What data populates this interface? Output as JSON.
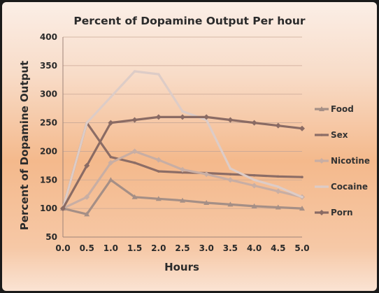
{
  "chart_data": {
    "type": "line",
    "title": "Percent of Dopamine Output Per hour",
    "xlabel": "Hours",
    "ylabel": "Percent of Dopamine Output",
    "x": [
      0.0,
      0.5,
      1.0,
      1.5,
      2.0,
      2.5,
      3.0,
      3.5,
      4.0,
      4.5,
      5.0
    ],
    "x_tick_labels": [
      "0.0",
      "0.5",
      "1.0",
      "1.5",
      "2.0",
      "2.5",
      "3.0",
      "3.5",
      "4.0",
      "4.5",
      "5.0"
    ],
    "ylim": [
      50,
      400
    ],
    "y_ticks": [
      50,
      100,
      150,
      200,
      250,
      300,
      350,
      400
    ],
    "grid": true,
    "legend_position": "right",
    "series": [
      {
        "name": "Food",
        "color": "#a58f86",
        "marker": "triangle",
        "values": [
          100,
          90,
          150,
          120,
          117,
          114,
          110,
          107,
          104,
          102,
          100
        ]
      },
      {
        "name": "Sex",
        "color": "#8c6d66",
        "marker": "none",
        "values": [
          100,
          250,
          190,
          180,
          165,
          163,
          162,
          160,
          158,
          156,
          155
        ]
      },
      {
        "name": "Nicotine",
        "color": "#c8aea4",
        "marker": "diamond",
        "values": [
          100,
          120,
          180,
          200,
          185,
          168,
          160,
          150,
          140,
          130,
          120
        ]
      },
      {
        "name": "Cocaine",
        "color": "#ddccc7",
        "marker": "none",
        "values": [
          100,
          250,
          295,
          340,
          335,
          270,
          255,
          170,
          150,
          138,
          120
        ]
      },
      {
        "name": "Porn",
        "color": "#8a6b64",
        "marker": "diamond",
        "values": [
          100,
          175,
          250,
          255,
          260,
          260,
          260,
          255,
          250,
          245,
          240
        ]
      }
    ]
  }
}
